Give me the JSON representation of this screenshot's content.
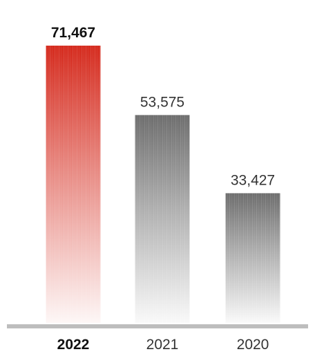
{
  "chart_data": {
    "type": "bar",
    "categories": [
      "2022",
      "2021",
      "2020"
    ],
    "values": [
      71467,
      53575,
      33427
    ],
    "value_labels": [
      "71,467",
      "53,575",
      "33,427"
    ],
    "highlight_index": 0,
    "ylim": [
      0,
      71467
    ],
    "grid": false,
    "title": "",
    "xlabel": "",
    "ylabel": ""
  },
  "colors": {
    "highlight": "#d52b1e",
    "default": "#6e6e6e",
    "baseline": "#bdbdbd",
    "text": "#333333",
    "text_bold": "#111111"
  }
}
